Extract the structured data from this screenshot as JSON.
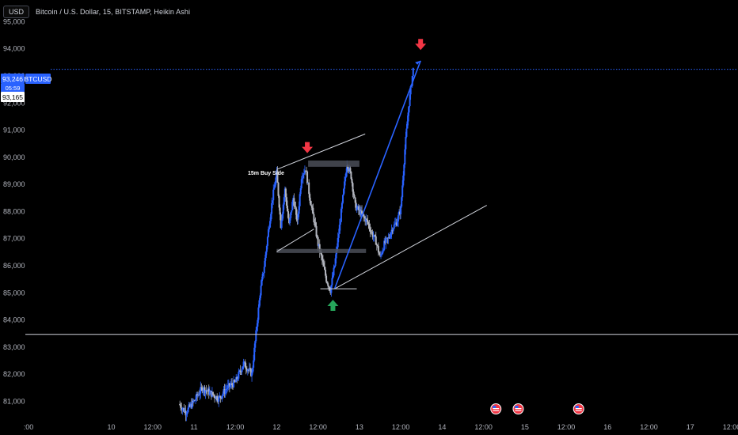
{
  "header": {
    "currency_badge": "USD",
    "title": "Bitcoin / U.S. Dollar, 15, BITSTAMP, Heikin Ashi"
  },
  "price_tags": {
    "last_price": "93,246",
    "countdown": "05:59",
    "symbol": "BTCUSD",
    "second_price": "93,165"
  },
  "annotations": {
    "buy_side_label": "15m Buy Side"
  },
  "colors": {
    "background": "#000000",
    "candle_up": "#2962ff",
    "candle_down": "#b2b5be",
    "trend_line": "#d1d4dc",
    "projection_line": "#2962ff",
    "arrow_down": "#f23645",
    "arrow_up": "#26a65b",
    "zone": "#4a4d57",
    "price_tag": "#2962ff"
  },
  "chart_data": {
    "type": "candlestick",
    "title": "Bitcoin / U.S. Dollar, 15, BITSTAMP, Heikin Ashi",
    "y_axis": {
      "position": "left",
      "ticks": [
        95000,
        94000,
        93000,
        92000,
        91000,
        90000,
        89000,
        88000,
        87000,
        86000,
        85000,
        84000,
        83000,
        82000,
        81000
      ],
      "tick_labels": [
        "95,000",
        "94,000",
        "93,000",
        "92,000",
        "91,000",
        "90,000",
        "89,000",
        "88,000",
        "87,000",
        "86,000",
        "85,000",
        "84,000",
        "83,000",
        "82,000",
        "81,000"
      ],
      "range": [
        80400,
        95800
      ]
    },
    "x_axis": {
      "tick_labels": [
        ":00",
        "10",
        "12:00",
        "11",
        "12:00",
        "12",
        "12:00",
        "13",
        "12:00",
        "14",
        "12:00",
        "15",
        "12:00",
        "16",
        "12:00",
        "17",
        "12:00"
      ],
      "tick_times": [
        9.0,
        10.0,
        10.5,
        11.0,
        11.5,
        12.0,
        12.5,
        13.0,
        13.5,
        14.0,
        14.5,
        15.0,
        15.5,
        16.0,
        16.5,
        17.0,
        17.5
      ],
      "range": [
        9.0,
        17.5
      ],
      "unit": "day"
    },
    "approx_price_path": [
      [
        10.82,
        80900
      ],
      [
        10.9,
        80600
      ],
      [
        11.0,
        81000
      ],
      [
        11.1,
        81500
      ],
      [
        11.2,
        81300
      ],
      [
        11.3,
        81100
      ],
      [
        11.4,
        81500
      ],
      [
        11.5,
        81700
      ],
      [
        11.6,
        82400
      ],
      [
        11.7,
        82000
      ],
      [
        11.75,
        83500
      ],
      [
        11.8,
        85000
      ],
      [
        11.85,
        86000
      ],
      [
        11.9,
        87300
      ],
      [
        11.95,
        88500
      ],
      [
        12.0,
        89400
      ],
      [
        12.05,
        87500
      ],
      [
        12.1,
        88800
      ],
      [
        12.15,
        87500
      ],
      [
        12.2,
        88500
      ],
      [
        12.25,
        87600
      ],
      [
        12.3,
        89300
      ],
      [
        12.35,
        89600
      ],
      [
        12.4,
        88500
      ],
      [
        12.45,
        87700
      ],
      [
        12.5,
        86800
      ],
      [
        12.55,
        86200
      ],
      [
        12.6,
        85500
      ],
      [
        12.65,
        85100
      ],
      [
        12.7,
        86000
      ],
      [
        12.75,
        87200
      ],
      [
        12.8,
        88500
      ],
      [
        12.85,
        89800
      ],
      [
        12.9,
        89300
      ],
      [
        12.95,
        88200
      ],
      [
        13.0,
        88000
      ],
      [
        13.05,
        87800
      ],
      [
        13.1,
        87600
      ],
      [
        13.15,
        87200
      ],
      [
        13.2,
        86900
      ],
      [
        13.25,
        86300
      ],
      [
        13.3,
        86800
      ],
      [
        13.35,
        87000
      ],
      [
        13.4,
        87400
      ],
      [
        13.45,
        87600
      ],
      [
        13.5,
        88100
      ],
      [
        13.55,
        90300
      ],
      [
        13.6,
        92000
      ],
      [
        13.65,
        93246
      ]
    ],
    "horizontal_lines": [
      {
        "price": 83470,
        "style": "solid",
        "color": "#d1d4dc"
      },
      {
        "price": 93246,
        "style": "dotted",
        "color": "#2962ff"
      }
    ],
    "zones": [
      {
        "from_time": 12.38,
        "to_time": 13.0,
        "top": 89880,
        "bottom": 89650
      },
      {
        "from_time": 12.0,
        "to_time": 13.08,
        "top": 86620,
        "bottom": 86470
      }
    ],
    "trend_lines": [
      {
        "from": [
          12.0,
          89550
        ],
        "to": [
          13.07,
          90860
        ],
        "color": "#d1d4dc"
      },
      {
        "from": [
          12.0,
          86520
        ],
        "to": [
          12.45,
          87350
        ],
        "color": "#d1d4dc"
      },
      {
        "from": [
          12.7,
          85150
        ],
        "to": [
          14.54,
          88230
        ],
        "color": "#d1d4dc"
      },
      {
        "from": [
          12.7,
          85150
        ],
        "to": [
          13.74,
          93560
        ],
        "color": "#2962ff"
      }
    ],
    "markers": [
      {
        "type": "arrow-down",
        "time": 12.37,
        "price": 90300,
        "color": "#f23645"
      },
      {
        "type": "arrow-up",
        "time": 12.68,
        "price": 84600,
        "color": "#26a65b"
      },
      {
        "type": "arrow-down",
        "time": 13.74,
        "price": 94100,
        "color": "#f23645"
      }
    ],
    "event_icons_times": [
      14.65,
      14.92,
      15.65
    ],
    "grid": false,
    "legend": "none"
  }
}
